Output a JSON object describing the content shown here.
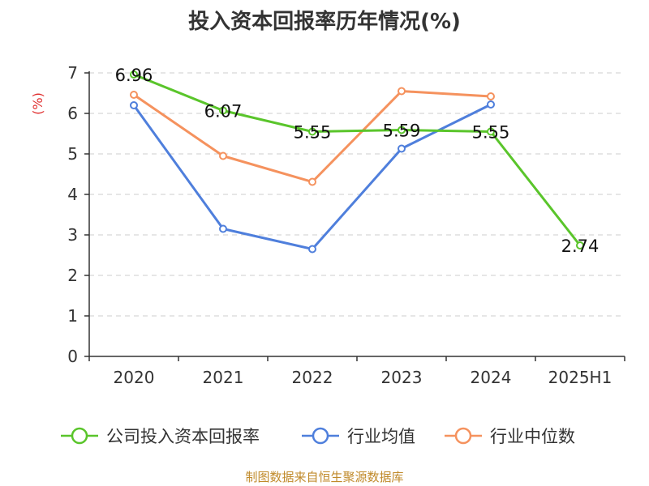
{
  "colors": {
    "company": "#5ac52b",
    "industry_avg": "#4f7fdc",
    "industry_median": "#f5925e",
    "ylabel": "#e03030",
    "source": "#c08a2a",
    "grid": "#cccccc",
    "axis": "#333333",
    "text": "#333333"
  },
  "source": "制图数据来自恒生聚源数据库",
  "chart_data": {
    "type": "line",
    "title": "投入资本回报率历年情况(%)",
    "ylabel": "(%)",
    "xlabel": "",
    "categories": [
      "2020",
      "2021",
      "2022",
      "2023",
      "2024",
      "2025H1"
    ],
    "ylim": [
      0,
      7
    ],
    "yticks": [
      0,
      1,
      2,
      3,
      4,
      5,
      6,
      7
    ],
    "grid": "horizontal dashed",
    "legend_position": "bottom",
    "series": [
      {
        "name": "公司投入资本回报率",
        "color_key": "company",
        "values": [
          6.96,
          6.07,
          5.55,
          5.59,
          5.55,
          2.74
        ],
        "labels": [
          "6.96",
          "6.07",
          "5.55",
          "5.59",
          "5.55",
          "2.74"
        ]
      },
      {
        "name": "行业均值",
        "color_key": "industry_avg",
        "values": [
          6.2,
          3.15,
          2.65,
          5.13,
          6.22,
          null
        ],
        "labels": null
      },
      {
        "name": "行业中位数",
        "color_key": "industry_median",
        "values": [
          6.46,
          4.95,
          4.31,
          6.55,
          6.42,
          null
        ],
        "labels": null
      }
    ]
  }
}
